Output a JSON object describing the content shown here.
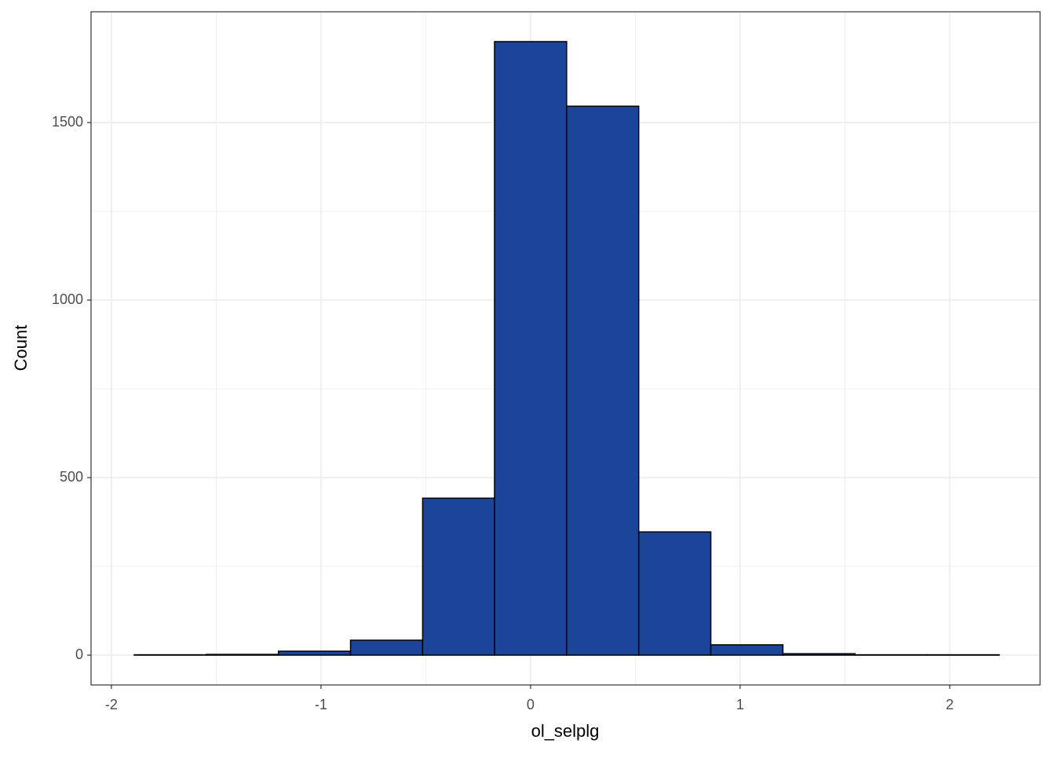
{
  "chart_data": {
    "type": "histogram",
    "x_label": "ol_selplg",
    "y_label": "Count",
    "bins": [
      -1.891,
      -1.547,
      -1.203,
      -0.859,
      -0.515,
      -0.172,
      0.172,
      0.516,
      0.86,
      1.204,
      1.548,
      1.892,
      2.236
    ],
    "values": [
      1,
      2,
      11,
      42,
      442,
      1728,
      1546,
      347,
      29,
      4,
      1,
      1
    ],
    "color": "#1a4599",
    "edge_color": "#000000",
    "xlim": [
      -2.097,
      2.431
    ],
    "xticks": [
      -2,
      -1,
      0,
      1,
      2
    ],
    "ylim": [
      -84,
      1812
    ],
    "yticks": [
      0,
      500,
      1000,
      1500
    ],
    "grid": true
  }
}
